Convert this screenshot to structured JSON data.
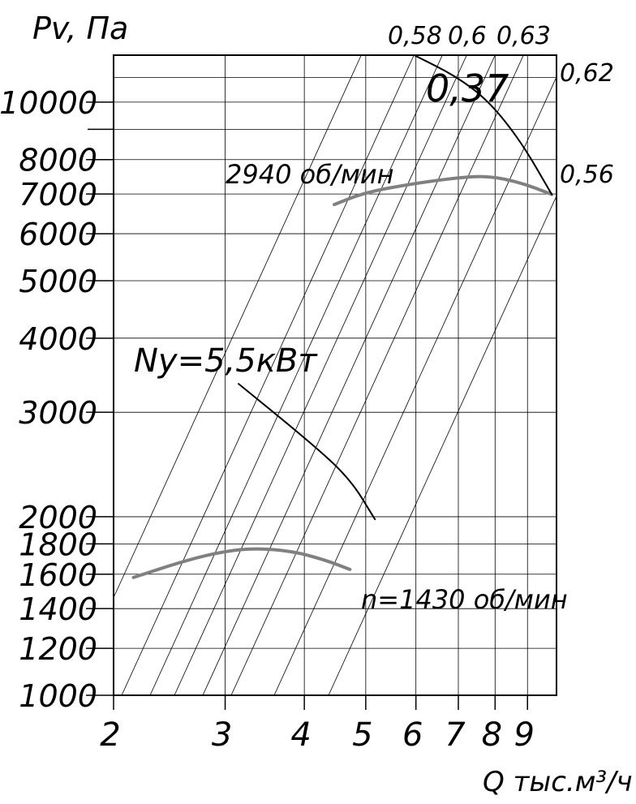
{
  "chart_data": {
    "type": "line",
    "title": "Pv, Па",
    "x_label": "Q тыс.м³/ч",
    "log_x": true,
    "log_y": true,
    "grid": true,
    "xlim": [
      2,
      10
    ],
    "ylim": [
      1000,
      12000
    ],
    "xticks": [
      2,
      3,
      4,
      5,
      6,
      7,
      8,
      9
    ],
    "yticks": [
      1000,
      1200,
      1400,
      1600,
      1800,
      2000,
      3000,
      4000,
      5000,
      6000,
      7000,
      8000,
      10000
    ],
    "ygrid_minor": [
      9000,
      11000
    ],
    "series": [
      {
        "name": "2940 об/мин",
        "color": "#808080",
        "x": [
          4.46,
          5,
          6,
          7,
          7.8,
          8.78,
          9.83
        ],
        "values": [
          6720,
          7050,
          7300,
          7460,
          7510,
          7320,
          6990
        ]
      },
      {
        "name": "0,37",
        "color": "#000000",
        "x": [
          5.98,
          6.93,
          7.8,
          8.78,
          9.83
        ],
        "values": [
          11980,
          11070,
          10070,
          8600,
          6990
        ]
      },
      {
        "name": "n=1430 об/мин",
        "color": "#808080",
        "x": [
          2.15,
          2.61,
          3,
          3.35,
          3.83,
          4.32,
          4.72
        ],
        "values": [
          1580,
          1690,
          1750,
          1770,
          1750,
          1690,
          1630
        ]
      },
      {
        "name": "Ny=5,5кВт",
        "color": "#000000",
        "x": [
          3.15,
          4.07,
          4.72,
          5.17
        ],
        "values": [
          3350,
          2680,
          2320,
          1980
        ]
      }
    ],
    "efficiency_labels": [
      "0,58",
      "0,6",
      "0,63",
      "0,62",
      "0,56"
    ]
  }
}
